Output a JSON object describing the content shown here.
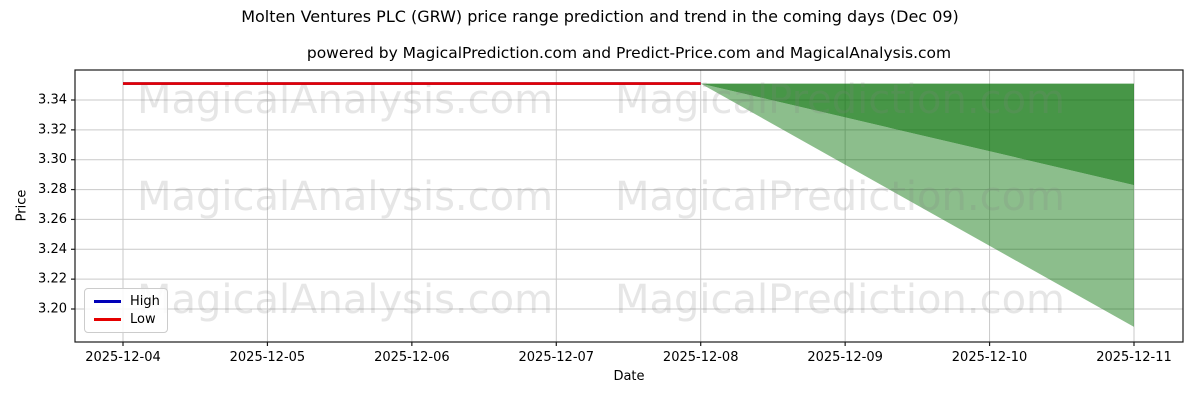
{
  "title": "Molten Ventures PLC (GRW) price range prediction and trend in the coming days (Dec 09)",
  "subtitle": "powered by MagicalPrediction.com and Predict-Price.com and MagicalAnalysis.com",
  "chart_data": {
    "type": "line+area-fan",
    "xlabel": "Date",
    "ylabel": "Price",
    "x_dates": [
      "2025-12-04",
      "2025-12-05",
      "2025-12-06",
      "2025-12-07",
      "2025-12-08",
      "2025-12-09",
      "2025-12-10",
      "2025-12-11"
    ],
    "y_ticks": [
      3.2,
      3.22,
      3.24,
      3.26,
      3.28,
      3.3,
      3.32,
      3.34
    ],
    "ylim": [
      3.177,
      3.36
    ],
    "grid": true,
    "series": [
      {
        "name": "High",
        "color": "#0000b8",
        "from": "2025-12-04",
        "to": "2025-12-08",
        "value": 3.351
      },
      {
        "name": "Low",
        "color": "#e50000",
        "from": "2025-12-04",
        "to": "2025-12-08",
        "value": 3.351
      }
    ],
    "prediction_bands": [
      {
        "name": "inner-range",
        "color": "rgba(0,110,0,0.72)",
        "from": "2025-12-08",
        "to": "2025-12-11",
        "start": 3.351,
        "end_upper": 3.351,
        "end_lower": 3.283
      },
      {
        "name": "outer-range",
        "color": "rgba(0,110,0,0.45)",
        "from": "2025-12-08",
        "to": "2025-12-11",
        "start": 3.351,
        "end_upper": 3.283,
        "end_lower": 3.188
      }
    ],
    "watermarks": [
      "MagicalAnalysis.com",
      "MagicalPrediction.com"
    ],
    "legend": {
      "position": "lower-left",
      "items": [
        {
          "label": "High",
          "color": "#0000b8"
        },
        {
          "label": "Low",
          "color": "#e50000"
        }
      ]
    }
  }
}
